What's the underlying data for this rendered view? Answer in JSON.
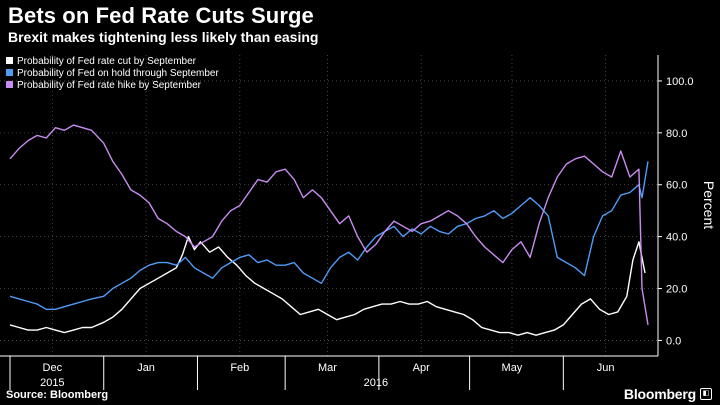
{
  "header": {
    "title": "Bets on Fed Rate Cuts Surge",
    "subtitle": "Brexit makes tightening less likely than easing"
  },
  "footer": {
    "source": "Source: Bloomberg",
    "brand": "Bloomberg",
    "brand_badge": "◧"
  },
  "colors": {
    "background": "#000000",
    "grid": "#555555",
    "axis_text": "#ffffff"
  },
  "chart_data": {
    "type": "line",
    "ylabel": "Percent",
    "ylim": [
      -6,
      110
    ],
    "yticks": [
      0,
      20,
      40,
      60,
      80,
      100
    ],
    "ytick_labels": [
      "0.0",
      "20.0",
      "40.0",
      "60.0",
      "80.0",
      "100.0"
    ],
    "y_axis_side": "right",
    "grid": true,
    "legend_position": "top-left",
    "x_start": "2015-12-01",
    "x_end": "2016-06-29",
    "x_tick_labels": [
      "Dec",
      "Jan",
      "Feb",
      "Mar",
      "Apr",
      "May",
      "Jun"
    ],
    "x_tick_dates": [
      "2015-12-15",
      "2016-01-15",
      "2016-02-15",
      "2016-03-15",
      "2016-04-15",
      "2016-05-15",
      "2016-06-15"
    ],
    "x_year_labels": [
      {
        "text": "2015",
        "date": "2015-12-15"
      },
      {
        "text": "2016",
        "date": "2016-03-31"
      }
    ],
    "series": [
      {
        "name": "Probability of Fed rate cut by September",
        "color": "#ffffff",
        "points": [
          [
            "2015-12-01",
            6
          ],
          [
            "2015-12-04",
            5
          ],
          [
            "2015-12-07",
            4
          ],
          [
            "2015-12-10",
            4
          ],
          [
            "2015-12-13",
            5
          ],
          [
            "2015-12-16",
            4
          ],
          [
            "2015-12-19",
            3
          ],
          [
            "2015-12-22",
            4
          ],
          [
            "2015-12-25",
            5
          ],
          [
            "2015-12-28",
            5
          ],
          [
            "2016-01-01",
            7
          ],
          [
            "2016-01-04",
            9
          ],
          [
            "2016-01-07",
            12
          ],
          [
            "2016-01-10",
            16
          ],
          [
            "2016-01-13",
            20
          ],
          [
            "2016-01-16",
            22
          ],
          [
            "2016-01-19",
            24
          ],
          [
            "2016-01-22",
            26
          ],
          [
            "2016-01-25",
            28
          ],
          [
            "2016-01-27",
            33
          ],
          [
            "2016-01-29",
            40
          ],
          [
            "2016-01-31",
            35
          ],
          [
            "2016-02-02",
            38
          ],
          [
            "2016-02-05",
            34
          ],
          [
            "2016-02-08",
            36
          ],
          [
            "2016-02-11",
            32
          ],
          [
            "2016-02-14",
            29
          ],
          [
            "2016-02-17",
            25
          ],
          [
            "2016-02-20",
            22
          ],
          [
            "2016-02-23",
            20
          ],
          [
            "2016-02-26",
            18
          ],
          [
            "2016-02-29",
            16
          ],
          [
            "2016-03-03",
            13
          ],
          [
            "2016-03-06",
            10
          ],
          [
            "2016-03-09",
            11
          ],
          [
            "2016-03-12",
            12
          ],
          [
            "2016-03-15",
            10
          ],
          [
            "2016-03-18",
            8
          ],
          [
            "2016-03-21",
            9
          ],
          [
            "2016-03-24",
            10
          ],
          [
            "2016-03-27",
            12
          ],
          [
            "2016-03-30",
            13
          ],
          [
            "2016-04-02",
            14
          ],
          [
            "2016-04-05",
            14
          ],
          [
            "2016-04-08",
            15
          ],
          [
            "2016-04-11",
            14
          ],
          [
            "2016-04-14",
            14
          ],
          [
            "2016-04-17",
            15
          ],
          [
            "2016-04-20",
            13
          ],
          [
            "2016-04-23",
            12
          ],
          [
            "2016-04-26",
            11
          ],
          [
            "2016-04-29",
            10
          ],
          [
            "2016-05-02",
            8
          ],
          [
            "2016-05-05",
            5
          ],
          [
            "2016-05-08",
            4
          ],
          [
            "2016-05-11",
            3
          ],
          [
            "2016-05-14",
            3
          ],
          [
            "2016-05-17",
            2
          ],
          [
            "2016-05-20",
            3
          ],
          [
            "2016-05-23",
            2
          ],
          [
            "2016-05-26",
            3
          ],
          [
            "2016-05-29",
            4
          ],
          [
            "2016-06-01",
            6
          ],
          [
            "2016-06-04",
            10
          ],
          [
            "2016-06-07",
            14
          ],
          [
            "2016-06-10",
            16
          ],
          [
            "2016-06-13",
            12
          ],
          [
            "2016-06-16",
            10
          ],
          [
            "2016-06-19",
            11
          ],
          [
            "2016-06-22",
            17
          ],
          [
            "2016-06-24",
            31
          ],
          [
            "2016-06-26",
            38
          ],
          [
            "2016-06-28",
            26
          ]
        ]
      },
      {
        "name": "Probability of Fed on hold through September",
        "color": "#4f9cf6",
        "points": [
          [
            "2015-12-01",
            17
          ],
          [
            "2015-12-04",
            16
          ],
          [
            "2015-12-07",
            15
          ],
          [
            "2015-12-10",
            14
          ],
          [
            "2015-12-13",
            12
          ],
          [
            "2015-12-16",
            12
          ],
          [
            "2015-12-19",
            13
          ],
          [
            "2015-12-22",
            14
          ],
          [
            "2015-12-25",
            15
          ],
          [
            "2015-12-28",
            16
          ],
          [
            "2016-01-01",
            17
          ],
          [
            "2016-01-04",
            20
          ],
          [
            "2016-01-07",
            22
          ],
          [
            "2016-01-10",
            24
          ],
          [
            "2016-01-13",
            27
          ],
          [
            "2016-01-16",
            29
          ],
          [
            "2016-01-19",
            30
          ],
          [
            "2016-01-22",
            30
          ],
          [
            "2016-01-25",
            29
          ],
          [
            "2016-01-28",
            32
          ],
          [
            "2016-01-31",
            28
          ],
          [
            "2016-02-03",
            26
          ],
          [
            "2016-02-06",
            24
          ],
          [
            "2016-02-09",
            28
          ],
          [
            "2016-02-12",
            30
          ],
          [
            "2016-02-15",
            32
          ],
          [
            "2016-02-18",
            33
          ],
          [
            "2016-02-21",
            30
          ],
          [
            "2016-02-24",
            31
          ],
          [
            "2016-02-27",
            29
          ],
          [
            "2016-03-01",
            29
          ],
          [
            "2016-03-04",
            30
          ],
          [
            "2016-03-07",
            26
          ],
          [
            "2016-03-10",
            24
          ],
          [
            "2016-03-13",
            22
          ],
          [
            "2016-03-16",
            28
          ],
          [
            "2016-03-19",
            32
          ],
          [
            "2016-03-22",
            34
          ],
          [
            "2016-03-25",
            31
          ],
          [
            "2016-03-28",
            36
          ],
          [
            "2016-03-31",
            40
          ],
          [
            "2016-04-03",
            42
          ],
          [
            "2016-04-06",
            44
          ],
          [
            "2016-04-09",
            40
          ],
          [
            "2016-04-12",
            43
          ],
          [
            "2016-04-15",
            41
          ],
          [
            "2016-04-18",
            44
          ],
          [
            "2016-04-21",
            42
          ],
          [
            "2016-04-24",
            41
          ],
          [
            "2016-04-27",
            44
          ],
          [
            "2016-04-30",
            45
          ],
          [
            "2016-05-03",
            47
          ],
          [
            "2016-05-06",
            48
          ],
          [
            "2016-05-09",
            50
          ],
          [
            "2016-05-12",
            47
          ],
          [
            "2016-05-15",
            49
          ],
          [
            "2016-05-18",
            52
          ],
          [
            "2016-05-21",
            55
          ],
          [
            "2016-05-24",
            52
          ],
          [
            "2016-05-27",
            48
          ],
          [
            "2016-05-30",
            32
          ],
          [
            "2016-06-02",
            30
          ],
          [
            "2016-06-05",
            28
          ],
          [
            "2016-06-08",
            25
          ],
          [
            "2016-06-11",
            40
          ],
          [
            "2016-06-14",
            48
          ],
          [
            "2016-06-17",
            50
          ],
          [
            "2016-06-20",
            56
          ],
          [
            "2016-06-23",
            57
          ],
          [
            "2016-06-26",
            60
          ],
          [
            "2016-06-27",
            55
          ],
          [
            "2016-06-29",
            69
          ]
        ]
      },
      {
        "name": "Probability of Fed rate hike by September",
        "color": "#c98cf2",
        "points": [
          [
            "2015-12-01",
            70
          ],
          [
            "2015-12-04",
            74
          ],
          [
            "2015-12-07",
            77
          ],
          [
            "2015-12-10",
            79
          ],
          [
            "2015-12-13",
            78
          ],
          [
            "2015-12-16",
            82
          ],
          [
            "2015-12-19",
            81
          ],
          [
            "2015-12-22",
            83
          ],
          [
            "2015-12-25",
            82
          ],
          [
            "2015-12-28",
            81
          ],
          [
            "2016-01-01",
            76
          ],
          [
            "2016-01-04",
            69
          ],
          [
            "2016-01-07",
            64
          ],
          [
            "2016-01-10",
            58
          ],
          [
            "2016-01-13",
            56
          ],
          [
            "2016-01-16",
            53
          ],
          [
            "2016-01-19",
            47
          ],
          [
            "2016-01-22",
            45
          ],
          [
            "2016-01-25",
            42
          ],
          [
            "2016-01-28",
            40
          ],
          [
            "2016-01-31",
            36
          ],
          [
            "2016-02-03",
            38
          ],
          [
            "2016-02-06",
            40
          ],
          [
            "2016-02-09",
            46
          ],
          [
            "2016-02-12",
            50
          ],
          [
            "2016-02-15",
            52
          ],
          [
            "2016-02-18",
            57
          ],
          [
            "2016-02-21",
            62
          ],
          [
            "2016-02-24",
            61
          ],
          [
            "2016-02-27",
            65
          ],
          [
            "2016-03-01",
            66
          ],
          [
            "2016-03-04",
            62
          ],
          [
            "2016-03-07",
            55
          ],
          [
            "2016-03-10",
            58
          ],
          [
            "2016-03-13",
            55
          ],
          [
            "2016-03-16",
            50
          ],
          [
            "2016-03-19",
            45
          ],
          [
            "2016-03-22",
            48
          ],
          [
            "2016-03-25",
            40
          ],
          [
            "2016-03-28",
            34
          ],
          [
            "2016-03-31",
            37
          ],
          [
            "2016-04-03",
            42
          ],
          [
            "2016-04-06",
            46
          ],
          [
            "2016-04-09",
            44
          ],
          [
            "2016-04-12",
            42
          ],
          [
            "2016-04-15",
            45
          ],
          [
            "2016-04-18",
            46
          ],
          [
            "2016-04-21",
            48
          ],
          [
            "2016-04-24",
            50
          ],
          [
            "2016-04-27",
            48
          ],
          [
            "2016-04-30",
            45
          ],
          [
            "2016-05-03",
            40
          ],
          [
            "2016-05-06",
            36
          ],
          [
            "2016-05-09",
            33
          ],
          [
            "2016-05-12",
            30
          ],
          [
            "2016-05-15",
            35
          ],
          [
            "2016-05-18",
            38
          ],
          [
            "2016-05-21",
            32
          ],
          [
            "2016-05-24",
            45
          ],
          [
            "2016-05-27",
            55
          ],
          [
            "2016-05-30",
            63
          ],
          [
            "2016-06-02",
            68
          ],
          [
            "2016-06-05",
            70
          ],
          [
            "2016-06-08",
            71
          ],
          [
            "2016-06-11",
            68
          ],
          [
            "2016-06-14",
            65
          ],
          [
            "2016-06-17",
            63
          ],
          [
            "2016-06-20",
            73
          ],
          [
            "2016-06-23",
            63
          ],
          [
            "2016-06-26",
            66
          ],
          [
            "2016-06-27",
            20
          ],
          [
            "2016-06-29",
            6
          ]
        ]
      }
    ]
  }
}
